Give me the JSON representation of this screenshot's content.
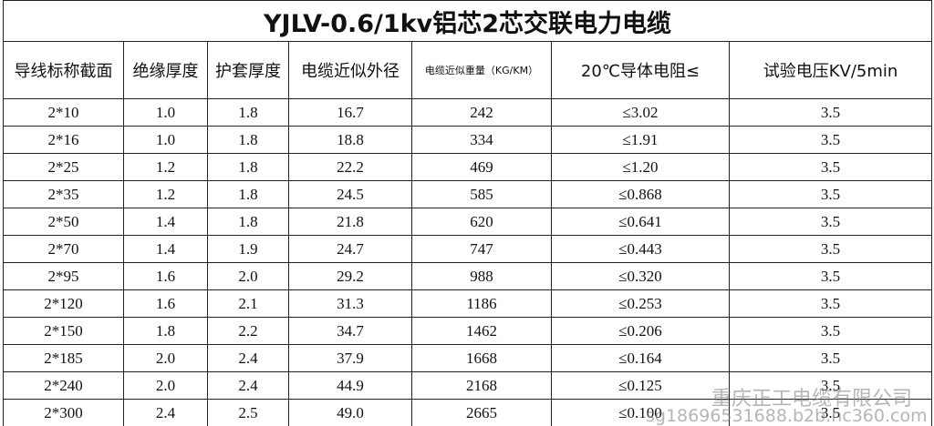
{
  "table": {
    "title": "YJLV-0.6/1kv铝芯2芯交联电力电缆",
    "header": [
      "导线标称截面",
      "绝缘厚度",
      "护套厚度",
      "电缆近似外径",
      "电缆近似重量（KG/KM）",
      "20℃导体电阻≤",
      "试验电压KV/5min"
    ],
    "rows": [
      [
        "2*10",
        "1.0",
        "1.8",
        "16.7",
        "242",
        "≤3.02",
        "3.5"
      ],
      [
        "2*16",
        "1.0",
        "1.8",
        "18.8",
        "334",
        "≤1.91",
        "3.5"
      ],
      [
        "2*25",
        "1.2",
        "1.8",
        "22.2",
        "469",
        "≤1.20",
        "3.5"
      ],
      [
        "2*35",
        "1.2",
        "1.8",
        "24.5",
        "585",
        "≤0.868",
        "3.5"
      ],
      [
        "2*50",
        "1.4",
        "1.8",
        "21.8",
        "620",
        "≤0.641",
        "3.5"
      ],
      [
        "2*70",
        "1.4",
        "1.9",
        "24.7",
        "747",
        "≤0.443",
        "3.5"
      ],
      [
        "2*95",
        "1.6",
        "2.0",
        "29.2",
        "988",
        "≤0.320",
        "3.5"
      ],
      [
        "2*120",
        "1.6",
        "2.1",
        "31.3",
        "1186",
        "≤0.253",
        "3.5"
      ],
      [
        "2*150",
        "1.8",
        "2.2",
        "34.7",
        "1462",
        "≤0.206",
        "3.5"
      ],
      [
        "2*185",
        "2.0",
        "2.4",
        "37.9",
        "1668",
        "≤0.164",
        "3.5"
      ],
      [
        "2*240",
        "2.0",
        "2.4",
        "44.9",
        "2168",
        "≤0.125",
        "3.5"
      ],
      [
        "2*300",
        "2.4",
        "2.5",
        "49.0",
        "2665",
        "≤0.100",
        "3.5"
      ]
    ]
  },
  "watermark": {
    "company": "重庆正工电缆有限公司",
    "url": "sg18696531688.b2b.hc360.com"
  }
}
